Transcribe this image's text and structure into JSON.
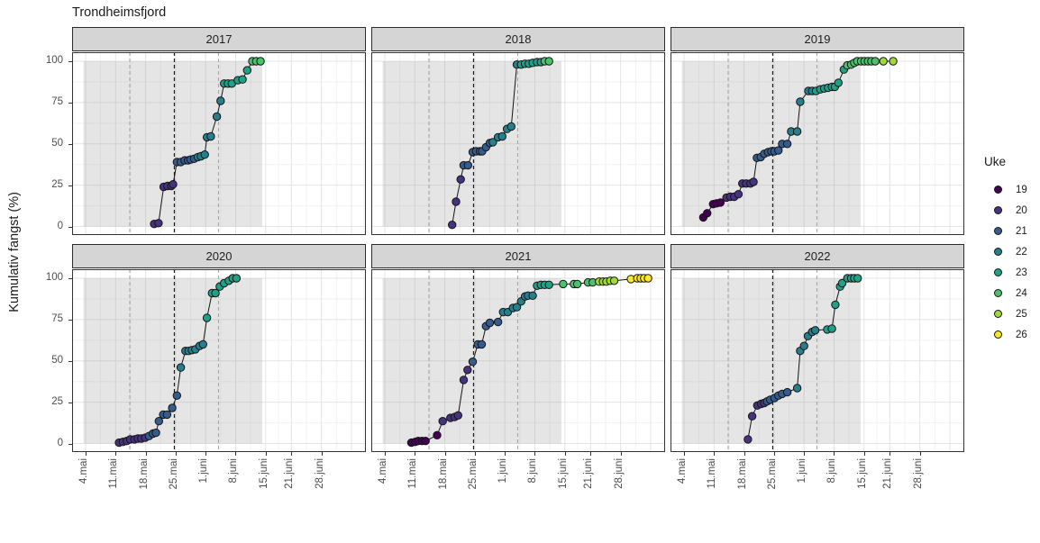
{
  "title": "Trondheimsfjord",
  "y_axis": {
    "label": "Kumulativ fangst (%)",
    "ticks": [
      0,
      25,
      50,
      75,
      100
    ]
  },
  "x_axis": {
    "ticks": [
      {
        "day": 3,
        "label": "4.mai"
      },
      {
        "day": 10,
        "label": "11.mai"
      },
      {
        "day": 17,
        "label": "18.mai"
      },
      {
        "day": 24,
        "label": "25.mai"
      },
      {
        "day": 31,
        "label": "1.juni"
      },
      {
        "day": 38,
        "label": "8.juni"
      },
      {
        "day": 45,
        "label": "15.juni"
      },
      {
        "day": 51,
        "label": "21.juni"
      },
      {
        "day": 58,
        "label": "28.juni"
      }
    ]
  },
  "legend": {
    "title": "Uke",
    "items": [
      {
        "label": "19",
        "color": "#440154"
      },
      {
        "label": "20",
        "color": "#46327e"
      },
      {
        "label": "21",
        "color": "#365c8d"
      },
      {
        "label": "22",
        "color": "#277f8e"
      },
      {
        "label": "23",
        "color": "#1fa187"
      },
      {
        "label": "24",
        "color": "#4ac16d"
      },
      {
        "label": "25",
        "color": "#a0da39"
      },
      {
        "label": "26",
        "color": "#fde725"
      }
    ]
  },
  "annotations": {
    "season_shading": {
      "from_day": 2.5,
      "to_day": 44.2,
      "color": "#969696",
      "opacity": 0.25
    },
    "dashed_lines": [
      {
        "day": 13.3,
        "style": "gray"
      },
      {
        "day": 23.7,
        "style": "black"
      },
      {
        "day": 34.0,
        "style": "gray"
      }
    ]
  },
  "chart_data": {
    "type": "scatter-line",
    "x_unit": "days_since_may1",
    "ylim": [
      0,
      100
    ],
    "grid": true,
    "legend_position": "right",
    "point_format": [
      "day",
      "cumulative_pct",
      "uke"
    ],
    "facets": [
      {
        "year": "2017",
        "points": [
          [
            19,
            1.5,
            20
          ],
          [
            20,
            2,
            20
          ],
          [
            21.2,
            24,
            20
          ],
          [
            22.1,
            24.5,
            20
          ],
          [
            23,
            24.5,
            20
          ],
          [
            23.4,
            25.5,
            20
          ],
          [
            24.3,
            39,
            21
          ],
          [
            25.2,
            39,
            21
          ],
          [
            26.1,
            40,
            21
          ],
          [
            26.9,
            40,
            21
          ],
          [
            27.5,
            40.5,
            21
          ],
          [
            28.3,
            41,
            21
          ],
          [
            29.2,
            42,
            22
          ],
          [
            29.9,
            42.5,
            22
          ],
          [
            30.8,
            43.5,
            22
          ],
          [
            31.3,
            54,
            22
          ],
          [
            32.2,
            54.5,
            22
          ],
          [
            33.6,
            66.5,
            22
          ],
          [
            34.5,
            76,
            22
          ],
          [
            35.3,
            86.5,
            23
          ],
          [
            36.2,
            86.5,
            23
          ],
          [
            37.1,
            86.5,
            23
          ],
          [
            38.5,
            88.5,
            23
          ],
          [
            39.6,
            89,
            23
          ],
          [
            40.7,
            94.5,
            23
          ],
          [
            41.9,
            100,
            24
          ],
          [
            42.8,
            100,
            24
          ],
          [
            43.8,
            100,
            24
          ]
        ]
      },
      {
        "year": "2018",
        "points": [
          [
            18.7,
            1,
            20
          ],
          [
            19.6,
            15,
            20
          ],
          [
            20.7,
            28.5,
            20
          ],
          [
            21.4,
            37,
            21
          ],
          [
            22.4,
            37,
            21
          ],
          [
            23.5,
            45,
            21
          ],
          [
            24.3,
            45.5,
            21
          ],
          [
            25.2,
            45.5,
            21
          ],
          [
            25.7,
            45.5,
            21
          ],
          [
            26.6,
            48,
            21
          ],
          [
            27.5,
            50.5,
            21
          ],
          [
            28.2,
            51,
            22
          ],
          [
            29.4,
            54,
            22
          ],
          [
            30.4,
            54.5,
            22
          ],
          [
            31.5,
            59,
            22
          ],
          [
            32.5,
            60.5,
            22
          ],
          [
            33.8,
            98,
            22
          ],
          [
            34.8,
            98,
            23
          ],
          [
            35.7,
            98.5,
            23
          ],
          [
            36.6,
            98.5,
            23
          ],
          [
            37.5,
            99,
            23
          ],
          [
            38.5,
            99.5,
            23
          ],
          [
            39.4,
            99.5,
            23
          ],
          [
            40.3,
            100,
            24
          ],
          [
            41.3,
            100,
            24
          ]
        ]
      },
      {
        "year": "2019",
        "points": [
          [
            7.5,
            5.5,
            19
          ],
          [
            8.4,
            8,
            19
          ],
          [
            9.8,
            13.5,
            19
          ],
          [
            10.6,
            14,
            19
          ],
          [
            11.5,
            14.5,
            19
          ],
          [
            12.9,
            17.5,
            20
          ],
          [
            13.8,
            18,
            20
          ],
          [
            14.7,
            18,
            20
          ],
          [
            15.7,
            19.5,
            20
          ],
          [
            16.6,
            26,
            20
          ],
          [
            17.5,
            26,
            20
          ],
          [
            18.5,
            26,
            20
          ],
          [
            19.2,
            27,
            20
          ],
          [
            20,
            41.5,
            21
          ],
          [
            20.9,
            42,
            21
          ],
          [
            21.7,
            44,
            21
          ],
          [
            22.6,
            45,
            21
          ],
          [
            23.4,
            45.5,
            21
          ],
          [
            24.1,
            45.5,
            21
          ],
          [
            25,
            46,
            21
          ],
          [
            25.9,
            50,
            21
          ],
          [
            27.1,
            50,
            21
          ],
          [
            28,
            57.5,
            22
          ],
          [
            29.4,
            57.5,
            22
          ],
          [
            30.1,
            75.5,
            22
          ],
          [
            32,
            82,
            22
          ],
          [
            32.9,
            82,
            22
          ],
          [
            33.8,
            82,
            23
          ],
          [
            34.8,
            83,
            23
          ],
          [
            35.7,
            83.5,
            23
          ],
          [
            36.6,
            84,
            23
          ],
          [
            37.5,
            84.5,
            23
          ],
          [
            38.2,
            84.5,
            23
          ],
          [
            39,
            87,
            23
          ],
          [
            40.3,
            95,
            23
          ],
          [
            41.1,
            97.5,
            24
          ],
          [
            42,
            98,
            24
          ],
          [
            42.7,
            99,
            24
          ],
          [
            43.4,
            100,
            24
          ],
          [
            44.3,
            100,
            24
          ],
          [
            45.1,
            100,
            24
          ],
          [
            45.9,
            100,
            24
          ],
          [
            46.7,
            100,
            24
          ],
          [
            47.6,
            100,
            24
          ],
          [
            49.5,
            100,
            25
          ],
          [
            51.8,
            100,
            25
          ]
        ]
      },
      {
        "year": "2020",
        "points": [
          [
            10.8,
            0.5,
            20
          ],
          [
            11.7,
            1,
            20
          ],
          [
            12.6,
            1.5,
            20
          ],
          [
            13.4,
            2.5,
            20
          ],
          [
            14.4,
            2.5,
            20
          ],
          [
            15.2,
            3,
            20
          ],
          [
            16,
            3,
            20
          ],
          [
            16.9,
            3.5,
            20
          ],
          [
            17.8,
            4.5,
            21
          ],
          [
            18.7,
            6,
            21
          ],
          [
            19.4,
            6.5,
            21
          ],
          [
            20.1,
            13.5,
            21
          ],
          [
            21.1,
            17.5,
            21
          ],
          [
            22,
            17.5,
            21
          ],
          [
            23.2,
            21.5,
            21
          ],
          [
            24.3,
            29,
            21
          ],
          [
            25.2,
            46,
            22
          ],
          [
            26.3,
            56,
            22
          ],
          [
            27,
            56,
            22
          ],
          [
            27.8,
            56.5,
            22
          ],
          [
            28.6,
            57,
            22
          ],
          [
            29.6,
            59,
            22
          ],
          [
            30.4,
            60,
            22
          ],
          [
            31.3,
            76,
            23
          ],
          [
            32.5,
            91,
            23
          ],
          [
            33.3,
            91,
            23
          ],
          [
            34.3,
            95,
            23
          ],
          [
            35.3,
            97,
            23
          ],
          [
            36.4,
            98.5,
            23
          ],
          [
            37.3,
            100,
            23
          ],
          [
            38.2,
            100,
            23
          ]
        ]
      },
      {
        "year": "2021",
        "points": [
          [
            9.2,
            0.5,
            19
          ],
          [
            10.1,
            1,
            19
          ],
          [
            10.8,
            1.5,
            19
          ],
          [
            11.7,
            1.5,
            19
          ],
          [
            12.5,
            1.5,
            19
          ],
          [
            15.2,
            5,
            19
          ],
          [
            16.5,
            13.5,
            20
          ],
          [
            18.3,
            15.5,
            20
          ],
          [
            19.3,
            16,
            20
          ],
          [
            20.1,
            17,
            20
          ],
          [
            21.4,
            38.5,
            20
          ],
          [
            22.3,
            44.5,
            20
          ],
          [
            23.5,
            49.5,
            21
          ],
          [
            24.7,
            60,
            21
          ],
          [
            25.6,
            60,
            21
          ],
          [
            26.6,
            71,
            21
          ],
          [
            27.5,
            73,
            21
          ],
          [
            29.4,
            73.5,
            21
          ],
          [
            30.6,
            79.5,
            22
          ],
          [
            31.7,
            79.5,
            22
          ],
          [
            32.9,
            82,
            22
          ],
          [
            33.8,
            82.5,
            22
          ],
          [
            34.8,
            86,
            22
          ],
          [
            35.7,
            89,
            22
          ],
          [
            36.4,
            89.5,
            22
          ],
          [
            37.5,
            89.5,
            22
          ],
          [
            38.5,
            95.5,
            23
          ],
          [
            39.4,
            96,
            23
          ],
          [
            40.3,
            96,
            23
          ],
          [
            41.3,
            96,
            23
          ],
          [
            44.6,
            96.5,
            24
          ],
          [
            47.1,
            96.5,
            24
          ],
          [
            47.9,
            96.5,
            24
          ],
          [
            50.4,
            97.5,
            24
          ],
          [
            51.5,
            97.5,
            24
          ],
          [
            53,
            98,
            25
          ],
          [
            53.9,
            98,
            25
          ],
          [
            54.7,
            98,
            25
          ],
          [
            55.6,
            98.5,
            25
          ],
          [
            56.5,
            98.5,
            25
          ],
          [
            60.4,
            99.5,
            26
          ],
          [
            61.9,
            100,
            26
          ],
          [
            62.7,
            100,
            26
          ],
          [
            63.5,
            100,
            26
          ],
          [
            64.4,
            100,
            26
          ]
        ]
      },
      {
        "year": "2022",
        "points": [
          [
            17.9,
            2.5,
            20
          ],
          [
            18.9,
            16.5,
            20
          ],
          [
            20.1,
            23,
            20
          ],
          [
            21,
            24,
            20
          ],
          [
            21.7,
            24.5,
            20
          ],
          [
            22.4,
            25.5,
            21
          ],
          [
            23.1,
            26.5,
            21
          ],
          [
            24.1,
            27.5,
            21
          ],
          [
            25,
            29,
            21
          ],
          [
            25.9,
            30,
            21
          ],
          [
            27.1,
            31,
            21
          ],
          [
            29.4,
            33.5,
            22
          ],
          [
            30.1,
            56,
            22
          ],
          [
            31,
            59,
            22
          ],
          [
            31.9,
            65,
            22
          ],
          [
            32.9,
            67.5,
            22
          ],
          [
            33.6,
            68.5,
            22
          ],
          [
            36.4,
            69,
            23
          ],
          [
            37.5,
            69.5,
            23
          ],
          [
            38.3,
            84,
            23
          ],
          [
            39.4,
            95,
            23
          ],
          [
            39.9,
            97,
            23
          ],
          [
            41.1,
            100,
            23
          ],
          [
            42,
            100,
            23
          ],
          [
            42.7,
            100,
            23
          ],
          [
            43.5,
            100,
            23
          ]
        ]
      }
    ]
  }
}
